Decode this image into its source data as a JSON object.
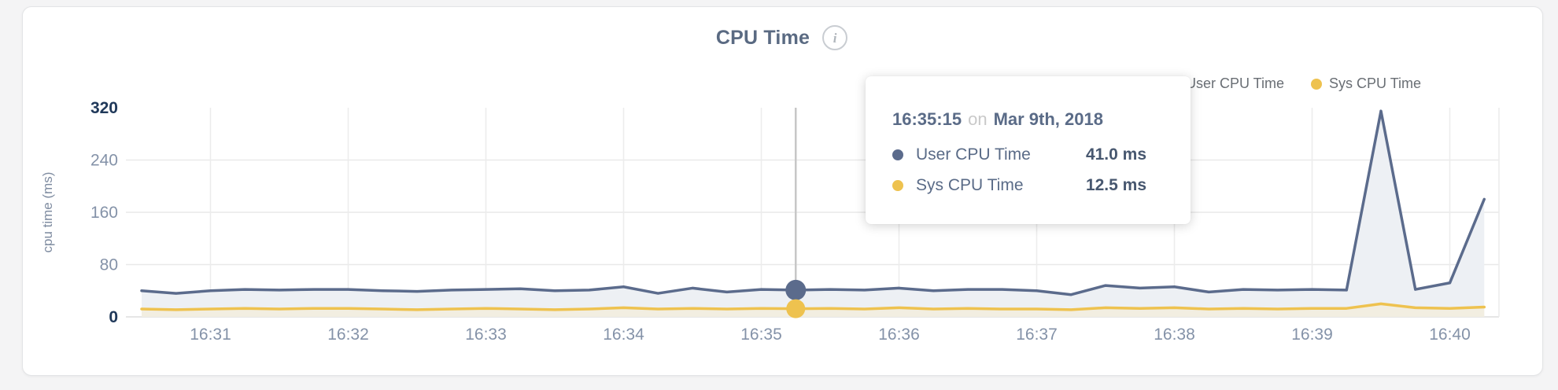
{
  "header": {
    "title": "CPU Time",
    "info_glyph": "i"
  },
  "legend": [
    {
      "label": "User CPU Time",
      "color": "#5b6b8c"
    },
    {
      "label": "Sys CPU Time",
      "color": "#eec24f"
    }
  ],
  "tooltip": {
    "time": "16:35:15",
    "connector": "on",
    "date": "Mar 9th, 2018",
    "rows": [
      {
        "label": "User CPU Time",
        "value": "41.0 ms",
        "color": "#5b6b8c"
      },
      {
        "label": "Sys CPU Time",
        "value": "12.5 ms",
        "color": "#eec24f"
      }
    ]
  },
  "chart_data": {
    "type": "area",
    "title": "CPU Time",
    "xlabel": "",
    "ylabel": "cpu time (ms)",
    "ylim": [
      0,
      320
    ],
    "yticks": [
      0,
      80,
      160,
      240,
      320
    ],
    "yticks_emphasized": [
      0,
      320
    ],
    "xticks": [
      "16:31",
      "16:32",
      "16:33",
      "16:34",
      "16:35",
      "16:36",
      "16:37",
      "16:38",
      "16:39",
      "16:40"
    ],
    "grid": true,
    "legend_position": "top-right",
    "sample_interval_seconds": 15,
    "x_times": [
      "16:30:30",
      "16:30:45",
      "16:31:00",
      "16:31:15",
      "16:31:30",
      "16:31:45",
      "16:32:00",
      "16:32:15",
      "16:32:30",
      "16:32:45",
      "16:33:00",
      "16:33:15",
      "16:33:30",
      "16:33:45",
      "16:34:00",
      "16:34:15",
      "16:34:30",
      "16:34:45",
      "16:35:00",
      "16:35:15",
      "16:35:30",
      "16:35:45",
      "16:36:00",
      "16:36:15",
      "16:36:30",
      "16:36:45",
      "16:37:00",
      "16:37:15",
      "16:37:30",
      "16:37:45",
      "16:38:00",
      "16:38:15",
      "16:38:30",
      "16:38:45",
      "16:39:00",
      "16:39:15",
      "16:39:30",
      "16:39:45",
      "16:40:00",
      "16:40:15"
    ],
    "series": [
      {
        "name": "User CPU Time",
        "color": "#5b6b8c",
        "fill": "#edf0f4",
        "values": [
          40,
          36,
          40,
          42,
          41,
          42,
          42,
          40,
          39,
          41,
          42,
          43,
          40,
          41,
          46,
          36,
          44,
          38,
          42,
          41,
          42,
          41,
          44,
          40,
          42,
          42,
          40,
          34,
          48,
          44,
          46,
          38,
          42,
          41,
          42,
          41,
          315,
          42,
          52,
          180
        ]
      },
      {
        "name": "Sys CPU Time",
        "color": "#eec24f",
        "fill": "#f2eee1",
        "values": [
          12,
          11,
          12,
          13,
          12,
          13,
          13,
          12,
          11,
          12,
          13,
          12,
          11,
          12,
          14,
          12,
          13,
          12,
          13,
          12.5,
          13,
          12,
          14,
          12,
          13,
          12,
          12,
          11,
          14,
          13,
          14,
          12,
          13,
          12,
          13,
          13,
          20,
          14,
          13,
          15
        ]
      }
    ],
    "selected": {
      "index": 19,
      "time": "16:35:15",
      "date": "Mar 9th, 2018",
      "user_cpu_ms": 41.0,
      "sys_cpu_ms": 12.5
    }
  }
}
